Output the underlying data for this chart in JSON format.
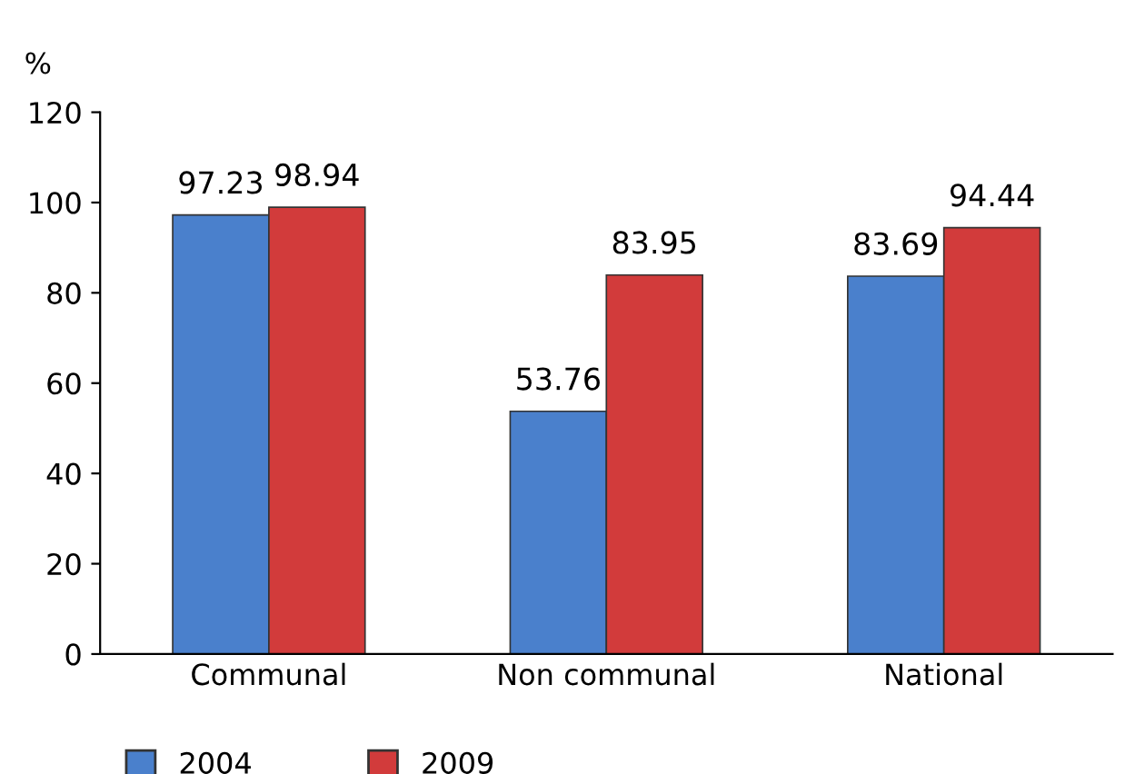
{
  "chart_data": {
    "type": "bar",
    "ylabel": "%",
    "categories": [
      "Communal",
      "Non communal",
      "National"
    ],
    "series": [
      {
        "name": "2004",
        "color": "#4a80cc",
        "values": [
          97.23,
          53.76,
          83.69
        ]
      },
      {
        "name": "2009",
        "color": "#d23b3b",
        "values": [
          98.94,
          83.95,
          94.44
        ]
      }
    ],
    "ylim": [
      0,
      120
    ],
    "yticks": [
      0,
      20,
      40,
      60,
      80,
      100,
      120
    ],
    "data_labels": true,
    "grid": false,
    "legend": "bottom left"
  }
}
